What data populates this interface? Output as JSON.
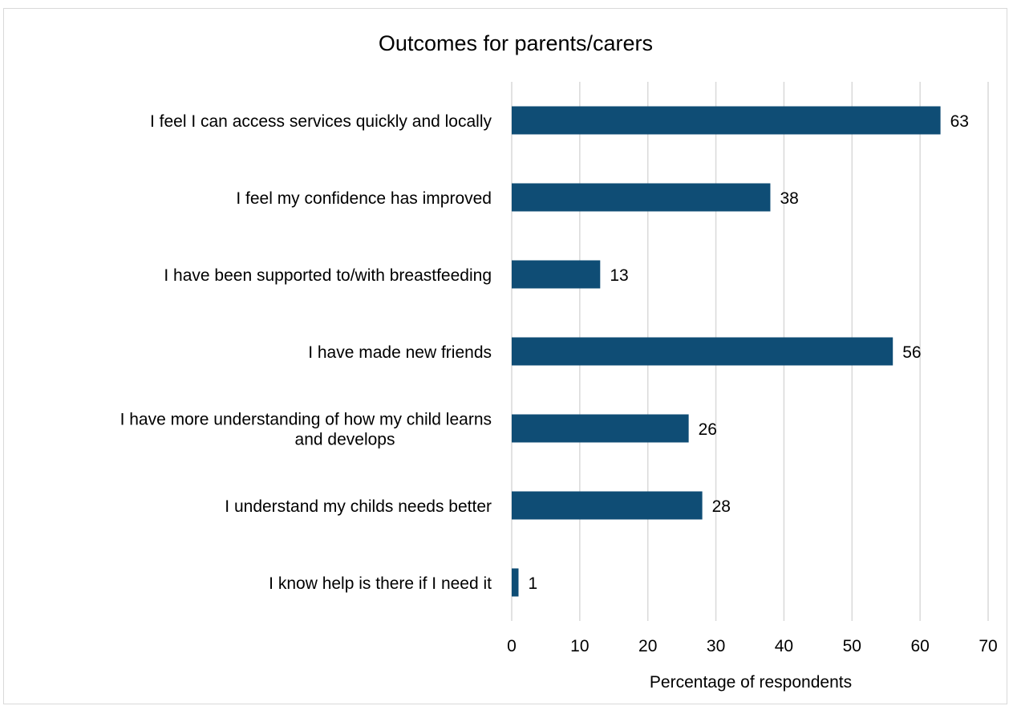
{
  "chart_data": {
    "type": "bar",
    "orientation": "horizontal",
    "title": "Outcomes for parents/carers",
    "xlabel": "Percentage of respondents",
    "ylabel": "",
    "xlim": [
      0,
      70
    ],
    "xticks": [
      0,
      10,
      20,
      30,
      40,
      50,
      60,
      70
    ],
    "grid": true,
    "legend": "none",
    "bar_color": "#0f4d75",
    "categories": [
      [
        "I feel I can access services quickly and locally"
      ],
      [
        "I feel my confidence has improved"
      ],
      [
        "I have been supported to/with breastfeeding"
      ],
      [
        "I have made new friends"
      ],
      [
        "I have more understanding of how my child learns",
        "and develops"
      ],
      [
        "I understand my childs needs better"
      ],
      [
        "I know help is there if I need it"
      ]
    ],
    "values": [
      63,
      38,
      13,
      56,
      26,
      28,
      1
    ]
  }
}
